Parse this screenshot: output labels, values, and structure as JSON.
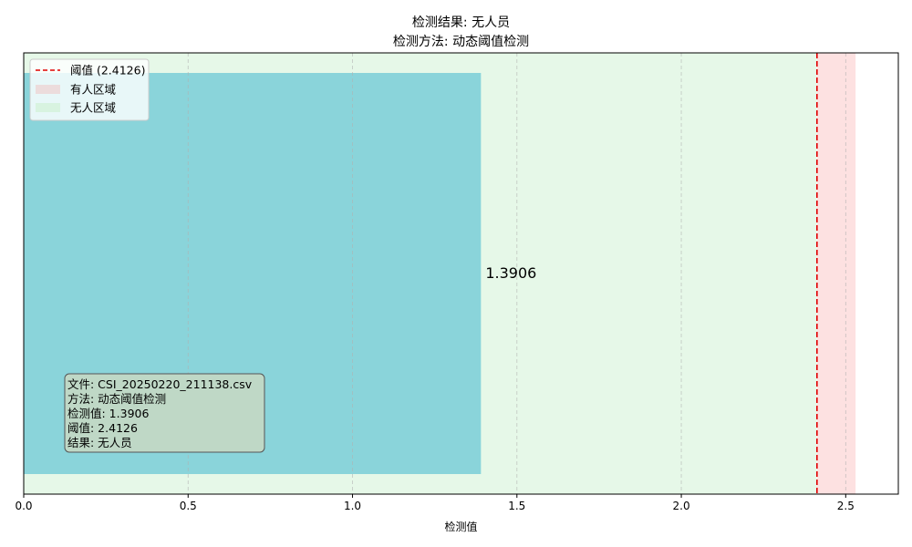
{
  "chart_data": {
    "type": "bar",
    "orientation": "horizontal",
    "title_lines": [
      "检测结果: 无人员",
      "检测方法: 动态阈值检测"
    ],
    "xlabel": "检测值",
    "ylabel": "",
    "xlim": [
      0,
      2.66
    ],
    "x_ticks": [
      0,
      0.5,
      1.0,
      1.5,
      2.0,
      2.5
    ],
    "x_tick_labels": [
      "0.0",
      "0.5",
      "1.0",
      "1.5",
      "2.0",
      "2.5"
    ],
    "grid": "x-dashed",
    "bar": {
      "value": 1.3906,
      "label": "1.3906",
      "color": "#8ad4da"
    },
    "threshold": {
      "value": 2.4126,
      "color": "#e00000",
      "style": "dashed"
    },
    "zones": [
      {
        "name": "无人区域",
        "from": 0,
        "to": 2.4126,
        "color": "#e6f8e8"
      },
      {
        "name": "有人区域",
        "from": 2.4126,
        "to": 2.53,
        "color": "#fde1e1"
      }
    ],
    "legend": {
      "position": "top-left",
      "entries": [
        {
          "label": "阈值 (2.4126)",
          "kind": "line",
          "color": "#e00000"
        },
        {
          "label": "有人区域",
          "kind": "patch",
          "color": "#ecdcdc"
        },
        {
          "label": "无人区域",
          "kind": "patch",
          "color": "#d8f3e0"
        }
      ]
    },
    "info_box": {
      "position": "bottom-left",
      "lines": [
        "文件: CSI_20250220_211138.csv",
        "方法: 动态阈值检测",
        "检测值: 1.3906",
        "阈值: 2.4126",
        "结果: 无人员"
      ],
      "background": "#bfd8c6"
    }
  }
}
